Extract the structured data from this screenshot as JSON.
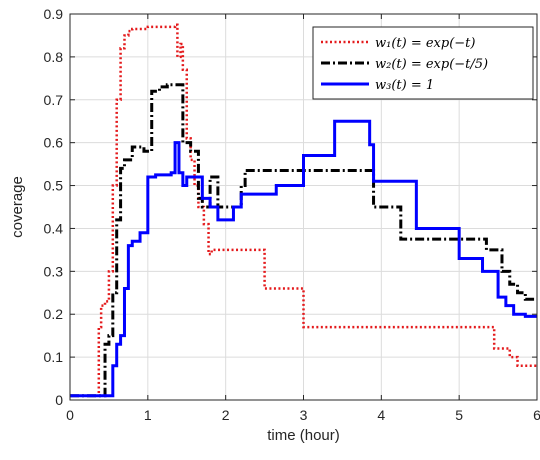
{
  "chart_data": {
    "type": "line",
    "title": "",
    "xlabel": "time (hour)",
    "ylabel": "coverage",
    "xlim": [
      0,
      6
    ],
    "ylim": [
      0,
      0.9
    ],
    "x_ticks": [
      0,
      1,
      2,
      3,
      4,
      5,
      6
    ],
    "y_ticks": [
      0,
      0.1,
      0.2,
      0.3,
      0.4,
      0.5,
      0.6,
      0.7,
      0.8,
      0.9
    ],
    "x_tick_labels": [
      "0",
      "1",
      "2",
      "3",
      "4",
      "5",
      "6"
    ],
    "y_tick_labels": [
      "0",
      "0.1",
      "0.2",
      "0.3",
      "0.4",
      "0.5",
      "0.6",
      "0.7",
      "0.8",
      "0.9"
    ],
    "grid": true,
    "legend_position": "top-right",
    "series": [
      {
        "name": "w₁(t) = exp(−t)",
        "color": "#e41a1c",
        "style": "dotted",
        "x": [
          0,
          0.35,
          0.37,
          0.4,
          0.45,
          0.5,
          0.55,
          0.6,
          0.65,
          0.7,
          0.75,
          0.8,
          1.0,
          1.35,
          1.38,
          1.42,
          1.45,
          1.5,
          1.55,
          1.6,
          1.65,
          1.72,
          1.78,
          1.82,
          2.25,
          2.5,
          2.95,
          3.0,
          5.35,
          5.45,
          5.65,
          5.75,
          6.0
        ],
        "y": [
          0.01,
          0.01,
          0.17,
          0.22,
          0.23,
          0.3,
          0.5,
          0.7,
          0.82,
          0.85,
          0.86,
          0.865,
          0.87,
          0.875,
          0.8,
          0.83,
          0.77,
          0.61,
          0.56,
          0.5,
          0.45,
          0.41,
          0.34,
          0.35,
          0.35,
          0.26,
          0.26,
          0.17,
          0.17,
          0.12,
          0.1,
          0.08,
          0.08
        ]
      },
      {
        "name": "w₂(t) = exp(−t/5)",
        "color": "#000000",
        "style": "dashdot",
        "x": [
          0,
          0.35,
          0.45,
          0.5,
          0.55,
          0.6,
          0.65,
          0.7,
          0.8,
          0.95,
          1.05,
          1.15,
          1.25,
          1.4,
          1.45,
          1.55,
          1.65,
          1.7,
          1.8,
          1.9,
          2.15,
          2.2,
          2.25,
          3.0,
          3.1,
          3.9,
          4.05,
          4.25,
          5.2,
          5.35,
          5.55,
          5.65,
          5.75,
          5.85,
          6.0
        ],
        "y": [
          0.01,
          0.01,
          0.13,
          0.15,
          0.25,
          0.42,
          0.54,
          0.56,
          0.59,
          0.58,
          0.72,
          0.73,
          0.735,
          0.735,
          0.6,
          0.58,
          0.47,
          0.45,
          0.52,
          0.45,
          0.45,
          0.5,
          0.535,
          0.535,
          0.535,
          0.45,
          0.45,
          0.375,
          0.375,
          0.35,
          0.3,
          0.27,
          0.25,
          0.235,
          0.235
        ]
      },
      {
        "name": "w₃(t) = 1",
        "color": "#0000ff",
        "style": "solid",
        "x": [
          0,
          0.5,
          0.55,
          0.6,
          0.65,
          0.7,
          0.75,
          0.8,
          0.9,
          1.0,
          1.1,
          1.3,
          1.35,
          1.4,
          1.45,
          1.5,
          1.65,
          1.7,
          1.8,
          1.9,
          2.1,
          2.2,
          2.5,
          2.65,
          2.95,
          3.0,
          3.35,
          3.4,
          3.85,
          3.9,
          4.3,
          4.45,
          5.0,
          5.3,
          5.5,
          5.6,
          5.7,
          5.85,
          6.0
        ],
        "y": [
          0.01,
          0.01,
          0.08,
          0.13,
          0.15,
          0.26,
          0.36,
          0.37,
          0.39,
          0.52,
          0.525,
          0.53,
          0.6,
          0.53,
          0.5,
          0.52,
          0.52,
          0.47,
          0.45,
          0.42,
          0.45,
          0.48,
          0.48,
          0.5,
          0.5,
          0.57,
          0.57,
          0.65,
          0.595,
          0.51,
          0.51,
          0.4,
          0.33,
          0.3,
          0.24,
          0.22,
          0.2,
          0.195,
          0.195
        ]
      }
    ]
  }
}
